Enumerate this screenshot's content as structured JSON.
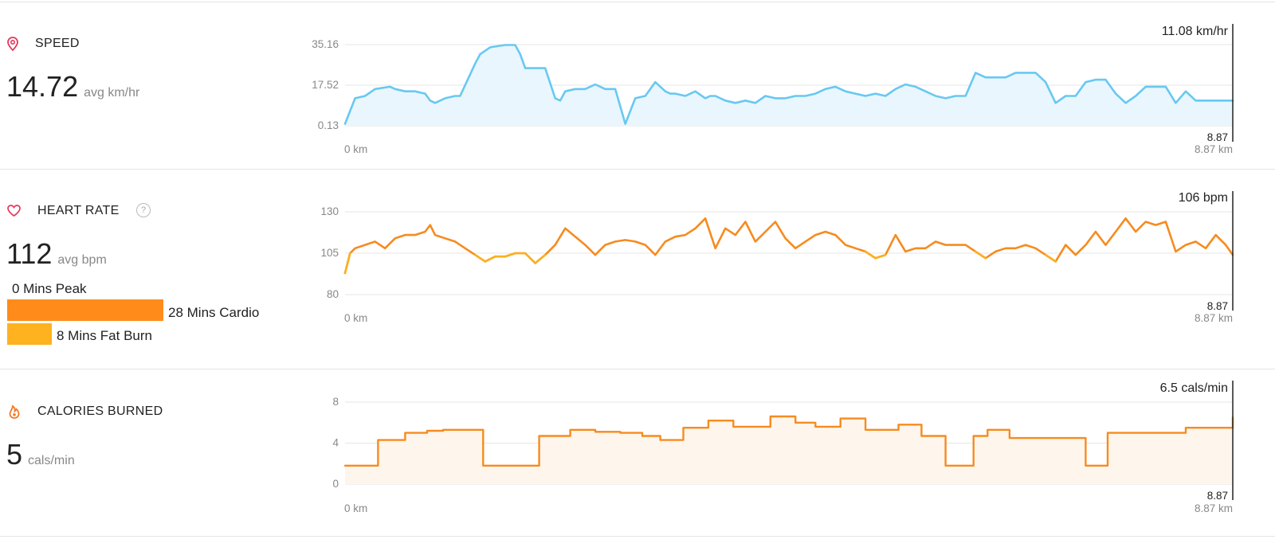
{
  "sections": {
    "speed": {
      "title": "SPEED",
      "value": "14.72",
      "unit": "avg km/hr",
      "icon": "location-pin-icon",
      "color": "#e8365d"
    },
    "heart": {
      "title": "HEART RATE",
      "value": "112",
      "unit": "avg bpm",
      "icon": "heart-icon",
      "color": "#e8365d",
      "help": "?",
      "zones": [
        {
          "label": "0 Mins Peak",
          "minutes": 0,
          "color": "#ff5722"
        },
        {
          "label": "28 Mins Cardio",
          "minutes": 28,
          "color": "#ff8c1a"
        },
        {
          "label": "8 Mins Fat Burn",
          "minutes": 8,
          "color": "#ffb21f"
        }
      ]
    },
    "calories": {
      "title": "CALORIES BURNED",
      "value": "5",
      "unit": "cals/min",
      "icon": "flame-icon",
      "color": "#f07b2a"
    }
  },
  "chart_data": [
    {
      "type": "area",
      "series_color": "#68c8f2",
      "fill_color": "#e9f6fd",
      "yticks": [
        "35.16",
        "17.52",
        "0.13"
      ],
      "ylim": [
        0.13,
        35.16
      ],
      "xlim": [
        0,
        8.87
      ],
      "x_start_label": "0 km",
      "x_end_label": "8.87 km",
      "current_value": "11.08 km/hr",
      "end_marker": "8.87",
      "x": [
        0,
        0.1,
        0.2,
        0.3,
        0.45,
        0.5,
        0.6,
        0.7,
        0.8,
        0.85,
        0.9,
        1.0,
        1.1,
        1.15,
        1.3,
        1.35,
        1.45,
        1.6,
        1.7,
        1.75,
        1.8,
        1.9,
        2.0,
        2.1,
        2.15,
        2.2,
        2.3,
        2.4,
        2.5,
        2.6,
        2.7,
        2.8,
        2.9,
        3.0,
        3.1,
        3.2,
        3.25,
        3.3,
        3.4,
        3.5,
        3.6,
        3.65,
        3.7,
        3.8,
        3.9,
        4.0,
        4.1,
        4.2,
        4.3,
        4.4,
        4.5,
        4.6,
        4.7,
        4.8,
        4.9,
        5.0,
        5.1,
        5.2,
        5.3,
        5.4,
        5.5,
        5.6,
        5.7,
        5.8,
        5.9,
        6.0,
        6.1,
        6.2,
        6.3,
        6.4,
        6.5,
        6.6,
        6.7,
        6.8,
        6.9,
        7.0,
        7.1,
        7.2,
        7.3,
        7.4,
        7.5,
        7.6,
        7.7,
        7.8,
        7.9,
        8.0,
        8.1,
        8.2,
        8.3,
        8.4,
        8.5,
        8.6,
        8.7,
        8.8,
        8.87
      ],
      "y": [
        1,
        12,
        13,
        16,
        17,
        16,
        15,
        15,
        14,
        11,
        10,
        12,
        13,
        13,
        27,
        31,
        34,
        35,
        35,
        31,
        25,
        25,
        25,
        12,
        11,
        15,
        16,
        16,
        18,
        16,
        16,
        1,
        12,
        13,
        19,
        15,
        14,
        14,
        13,
        15,
        12,
        13,
        13,
        11,
        10,
        11,
        10,
        13,
        12,
        12,
        13,
        13,
        14,
        16,
        17,
        15,
        14,
        13,
        14,
        13,
        16,
        18,
        17,
        15,
        13,
        12,
        13,
        13,
        23,
        21,
        21,
        21,
        23,
        23,
        23,
        19,
        10,
        13,
        13,
        19,
        20,
        20,
        14,
        10,
        13,
        17,
        17,
        17,
        10,
        15,
        11,
        11,
        11,
        11,
        11
      ]
    },
    {
      "type": "line",
      "series_color": "#f68b1f",
      "fat_burn_color": "#fbb020",
      "yticks": [
        "130",
        "105",
        "80"
      ],
      "ylim": [
        80,
        130
      ],
      "xlim": [
        0,
        8.87
      ],
      "x_start_label": "0 km",
      "x_end_label": "8.87 km",
      "current_value": "106 bpm",
      "end_marker": "8.87",
      "x": [
        0,
        0.05,
        0.1,
        0.2,
        0.3,
        0.4,
        0.5,
        0.6,
        0.7,
        0.8,
        0.85,
        0.9,
        1.0,
        1.1,
        1.2,
        1.3,
        1.4,
        1.5,
        1.6,
        1.7,
        1.8,
        1.9,
        2.0,
        2.1,
        2.2,
        2.3,
        2.4,
        2.5,
        2.6,
        2.7,
        2.8,
        2.9,
        3.0,
        3.1,
        3.2,
        3.3,
        3.4,
        3.5,
        3.6,
        3.7,
        3.8,
        3.9,
        4.0,
        4.1,
        4.2,
        4.3,
        4.4,
        4.5,
        4.6,
        4.7,
        4.8,
        4.9,
        5.0,
        5.1,
        5.2,
        5.3,
        5.4,
        5.5,
        5.6,
        5.7,
        5.8,
        5.9,
        6.0,
        6.1,
        6.2,
        6.3,
        6.4,
        6.5,
        6.6,
        6.7,
        6.8,
        6.9,
        7.0,
        7.1,
        7.2,
        7.3,
        7.4,
        7.5,
        7.6,
        7.7,
        7.8,
        7.9,
        8.0,
        8.1,
        8.2,
        8.3,
        8.4,
        8.5,
        8.6,
        8.7,
        8.8,
        8.87
      ],
      "y": [
        93,
        105,
        108,
        110,
        112,
        108,
        114,
        116,
        116,
        118,
        122,
        116,
        114,
        112,
        108,
        104,
        100,
        103,
        103,
        105,
        105,
        99,
        104,
        110,
        120,
        115,
        110,
        104,
        110,
        112,
        113,
        112,
        110,
        104,
        112,
        115,
        116,
        120,
        126,
        108,
        120,
        116,
        124,
        112,
        118,
        124,
        114,
        108,
        112,
        116,
        118,
        116,
        110,
        108,
        106,
        102,
        104,
        116,
        106,
        108,
        108,
        112,
        110,
        110,
        110,
        106,
        102,
        106,
        108,
        108,
        110,
        108,
        104,
        100,
        110,
        104,
        110,
        118,
        110,
        118,
        126,
        118,
        124,
        122,
        124,
        106,
        110,
        112,
        108,
        116,
        110,
        104
      ]
    },
    {
      "type": "area",
      "step": true,
      "series_color": "#f68b1f",
      "fill_color": "#fef5ec",
      "yticks": [
        "8",
        "4",
        "0"
      ],
      "ylim": [
        0,
        8
      ],
      "xlim": [
        0,
        8.87
      ],
      "x_start_label": "0 km",
      "x_end_label": "8.87 km",
      "current_value": "6.5 cals/min",
      "end_marker": "8.87",
      "x": [
        0,
        0.33,
        0.6,
        0.82,
        0.98,
        1.38,
        1.94,
        2.25,
        2.5,
        2.75,
        2.97,
        3.15,
        3.38,
        3.63,
        3.88,
        4.25,
        4.5,
        4.7,
        4.95,
        5.2,
        5.53,
        5.76,
        6.0,
        6.28,
        6.42,
        6.64,
        7.1,
        7.4,
        7.62,
        7.89,
        8.2,
        8.4,
        8.87
      ],
      "y": [
        1.8,
        4.3,
        5.0,
        5.2,
        5.3,
        1.8,
        4.7,
        5.3,
        5.1,
        5.0,
        4.7,
        4.3,
        5.5,
        6.2,
        5.6,
        6.6,
        6.0,
        5.6,
        6.4,
        5.3,
        5.8,
        4.7,
        1.8,
        4.7,
        5.3,
        4.5,
        4.5,
        1.8,
        5.0,
        5.0,
        5.0,
        5.5,
        6.5
      ]
    }
  ]
}
